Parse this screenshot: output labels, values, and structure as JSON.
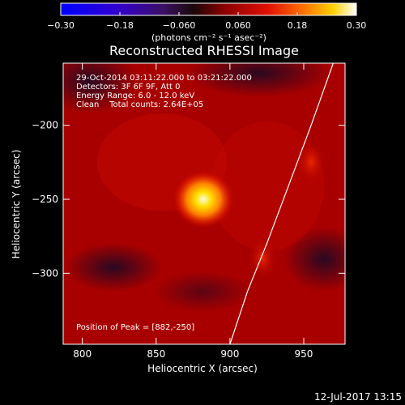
{
  "chart_data": {
    "type": "heatmap",
    "title": "Reconstructed RHESSI Image",
    "xlabel": "Heliocentric X (arcsec)",
    "ylabel": "Heliocentric Y (arcsec)",
    "xlim": [
      787,
      978
    ],
    "ylim": [
      -348,
      -158
    ],
    "xticks": [
      800,
      850,
      900,
      950
    ],
    "yticks": [
      -200,
      -250,
      -300
    ],
    "xtick_labels": [
      "800",
      "850",
      "900",
      "950"
    ],
    "ytick_labels": [
      "−200",
      "−250",
      "−300"
    ],
    "colorbar": {
      "range": [
        -0.3,
        0.3
      ],
      "ticks": [
        -0.3,
        -0.18,
        -0.06,
        0.06,
        0.18,
        0.3
      ],
      "tick_labels": [
        "−0.30",
        "−0.18",
        "−0.060",
        "0.060",
        "0.18",
        "0.30"
      ],
      "unit_label": "(photons cm⁻² s⁻¹ asec⁻²)"
    },
    "info_lines": [
      "29-Oct-2014 03:11:22.000 to 03:21:22.000",
      "Detectors: 3F 6F 9F, Att 0",
      "Energy Range: 6.0 - 12.0 keV",
      "Clean    Total counts: 2.64E+05"
    ],
    "peak_label": "Position of Peak = [882,-250]",
    "peak": {
      "x": 882,
      "y": -250,
      "value": 0.3
    },
    "secondary_sources": [
      {
        "x": 955,
        "y": -225,
        "value": 0.14
      },
      {
        "x": 922,
        "y": -290,
        "value": 0.11
      }
    ],
    "limb": [
      [
        970,
        -158
      ],
      [
        955,
        -200
      ],
      [
        940,
        -240
      ],
      [
        925,
        -280
      ],
      [
        912,
        -312
      ],
      [
        900,
        -348
      ]
    ]
  },
  "footer": {
    "timestamp": "12-Jul-2017 13:15"
  }
}
